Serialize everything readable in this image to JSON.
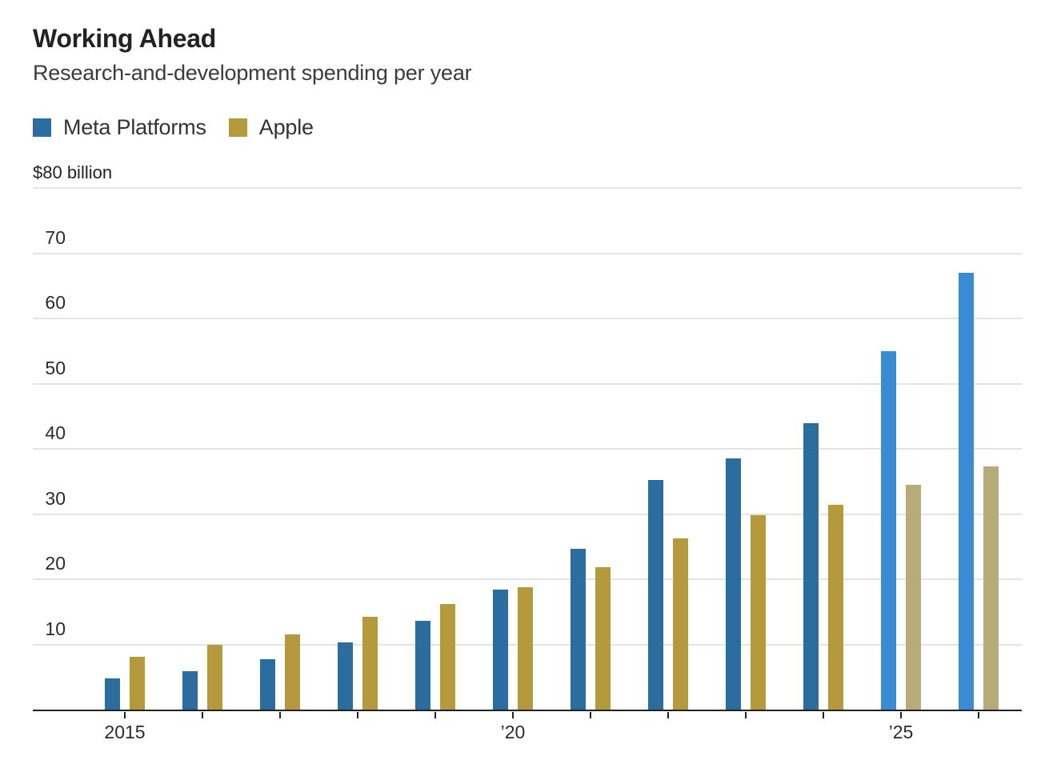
{
  "header": {
    "title": "Working Ahead",
    "subtitle": "Research-and-development spending per year"
  },
  "legend": {
    "items": [
      {
        "label": "Meta Platforms",
        "color": "#2b6d9e"
      },
      {
        "label": "Apple",
        "color": "#b49a3c"
      }
    ]
  },
  "chart_data": {
    "type": "bar",
    "title": "Working Ahead",
    "subtitle": "Research-and-development spending per year",
    "unit": "billions of U.S. dollars per year",
    "categories": [
      2015,
      2016,
      2017,
      2018,
      2019,
      2020,
      2021,
      2022,
      2023,
      2024,
      2025,
      2026
    ],
    "series": [
      {
        "name": "Meta Platforms",
        "color": "#2b6d9e",
        "estimate_color": "#398bd3",
        "values": [
          4.8,
          5.9,
          7.8,
          10.3,
          13.6,
          18.4,
          24.7,
          35.3,
          38.5,
          43.9,
          55,
          67
        ]
      },
      {
        "name": "Apple",
        "color": "#b49a3c",
        "estimate_color": "#b5ac7a",
        "values": [
          8.1,
          10.0,
          11.6,
          14.2,
          16.2,
          18.8,
          21.9,
          26.3,
          29.9,
          31.4,
          34.5,
          37.3
        ]
      }
    ],
    "estimate_categories": [
      2025,
      2026
    ],
    "y_axis": {
      "top_label": "$80 billion",
      "ticks": [
        0,
        10,
        20,
        30,
        40,
        50,
        60,
        70,
        80
      ],
      "range": [
        0,
        80
      ],
      "gridlines": true
    },
    "x_axis": {
      "labels": [
        {
          "category": 2015,
          "text": "2015"
        },
        {
          "category": 2020,
          "text": "’20"
        },
        {
          "category": 2025,
          "text": "’25"
        }
      ]
    },
    "legend_position": "top-left",
    "grid": true
  }
}
